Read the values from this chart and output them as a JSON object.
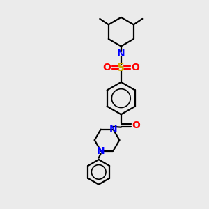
{
  "bg_color": "#ebebeb",
  "bond_color": "#000000",
  "n_color": "#0000ff",
  "o_color": "#ff0000",
  "s_color": "#ccaa00",
  "line_width": 1.6,
  "figsize": [
    3.0,
    3.0
  ],
  "dpi": 100,
  "xlim": [
    0,
    10
  ],
  "ylim": [
    0,
    10
  ]
}
